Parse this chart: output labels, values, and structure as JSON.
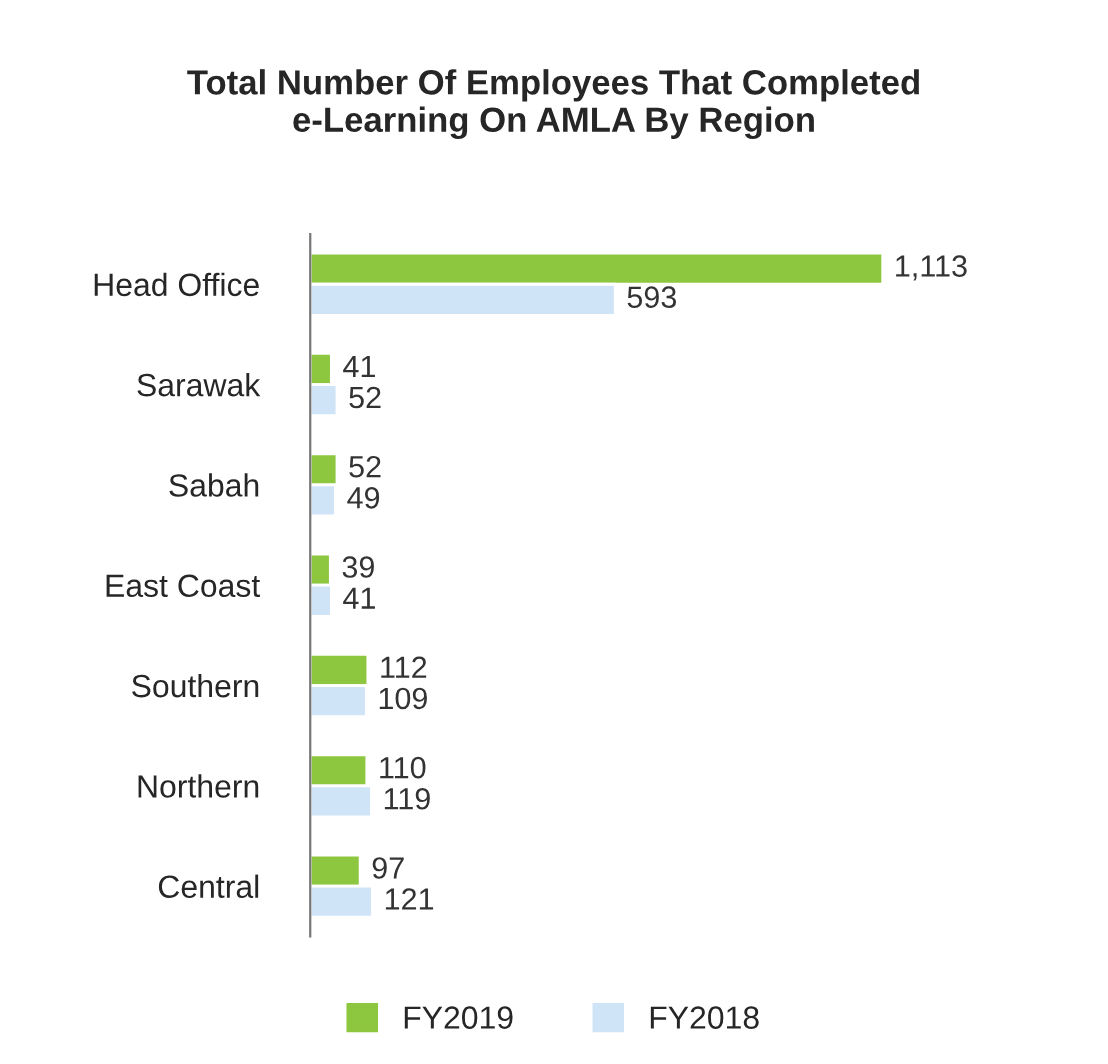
{
  "chart_data": {
    "type": "bar",
    "orientation": "horizontal",
    "title": "Total Number Of Employees That Completed\ne-Learning On AMLA By Region",
    "categories": [
      "Head Office",
      "Sarawak",
      "Sabah",
      "East Coast",
      "Southern",
      "Northern",
      "Central"
    ],
    "series": [
      {
        "name": "FY2019",
        "color": "#8dc63f",
        "values": [
          1113,
          41,
          52,
          39,
          112,
          110,
          97
        ],
        "value_labels": [
          "1,113",
          "41",
          "52",
          "39",
          "112",
          "110",
          "97"
        ]
      },
      {
        "name": "FY2018",
        "color": "#cfe4f7",
        "values": [
          593,
          52,
          49,
          41,
          109,
          119,
          121
        ],
        "value_labels": [
          "593",
          "52",
          "49",
          "41",
          "109",
          "119",
          "121"
        ]
      }
    ],
    "legend": "bottom",
    "grid": false
  }
}
